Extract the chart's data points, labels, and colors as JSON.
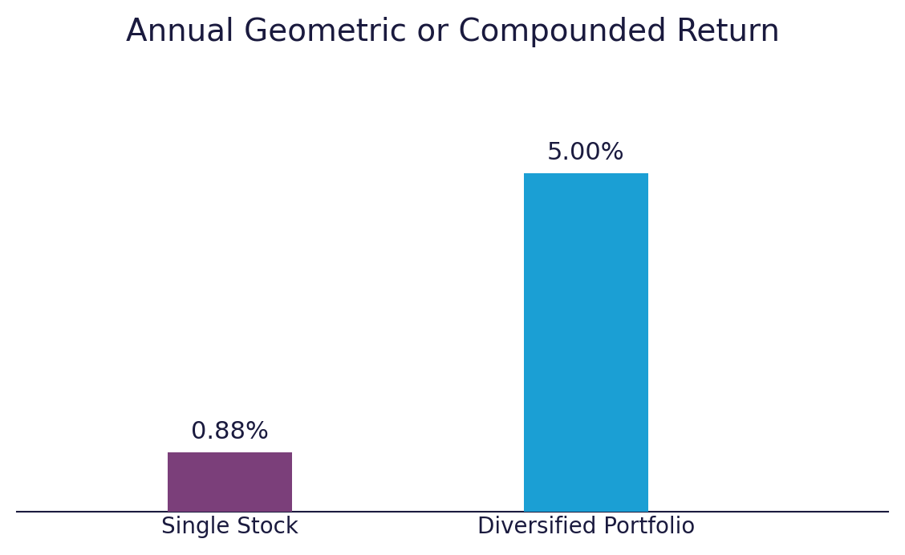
{
  "title": "Annual Geometric or Compounded Return",
  "categories": [
    "Single Stock",
    "Diversified Portfolio"
  ],
  "values": [
    0.88,
    5.0
  ],
  "bar_colors": [
    "#7B3F7A",
    "#1B9FD4"
  ],
  "bar_labels": [
    "0.88%",
    "5.00%"
  ],
  "background_color": "#ffffff",
  "title_color": "#1a1a3e",
  "label_color": "#1a1a3e",
  "title_fontsize": 28,
  "label_fontsize": 20,
  "value_fontsize": 22,
  "ylim": [
    0,
    6.5
  ],
  "bar_width": 0.35,
  "x_positions": [
    1,
    2
  ],
  "xlim": [
    0.4,
    2.85
  ]
}
